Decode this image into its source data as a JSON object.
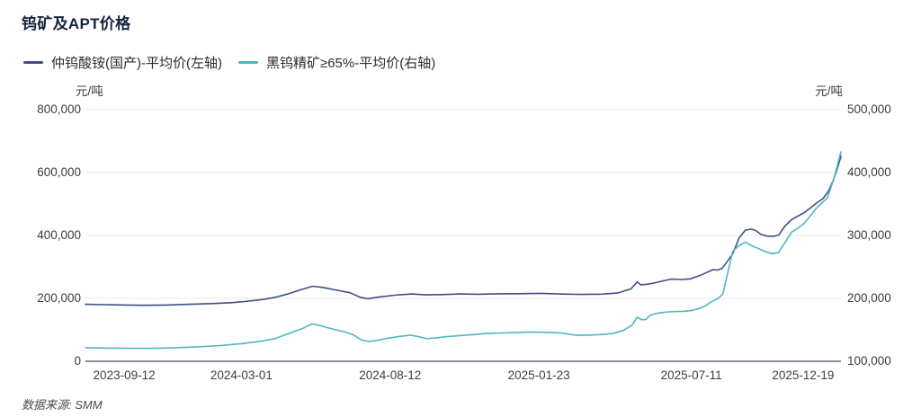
{
  "header": {
    "title": "钨矿及APT价格"
  },
  "footer": {
    "text": "数据来源: SMM"
  },
  "colors": {
    "title_text": "#15233d",
    "tick_text": "#3d3d3d",
    "grid": "#e8e8e8",
    "axis_line": "#8a9097",
    "series_apt": "#3f4e86",
    "series_concentrate": "#4fb6c6"
  },
  "chart_data": {
    "type": "line",
    "title": "钨矿及APT价格",
    "grid": true,
    "legend_position": "top-left",
    "left_axis": {
      "unit": "元/吨",
      "min": 0,
      "max": 800000,
      "ticks": [
        {
          "value": 800000,
          "label": "800,000"
        },
        {
          "value": 600000,
          "label": "600,000"
        },
        {
          "value": 400000,
          "label": "400,000"
        },
        {
          "value": 200000,
          "label": "200,000"
        },
        {
          "value": 0,
          "label": "0"
        }
      ]
    },
    "right_axis": {
      "unit": "元/吨",
      "min": 100000,
      "max": 500000,
      "ticks": [
        {
          "value": 500000,
          "label": "500,000"
        },
        {
          "value": 400000,
          "label": "400,000"
        },
        {
          "value": 300000,
          "label": "300,000"
        },
        {
          "value": 200000,
          "label": "200,000"
        },
        {
          "value": 100000,
          "label": "100,000"
        }
      ]
    },
    "x_axis": {
      "ticks": [
        {
          "label": "2023-09-12",
          "pos": 0.0513
        },
        {
          "label": "2024-03-01",
          "pos": 0.2064
        },
        {
          "label": "2024-08-12",
          "pos": 0.4033
        },
        {
          "label": "2025-01-23",
          "pos": 0.6002
        },
        {
          "label": "2025-07-11",
          "pos": 0.8019
        },
        {
          "label": "2025-12-19",
          "pos": 0.9499
        }
      ]
    },
    "series": [
      {
        "name": "仲钨酸铵(国产)-平均价(左轴)",
        "axis": "left",
        "color": "#3f4e86",
        "points": [
          [
            0.0,
            181000
          ],
          [
            0.024,
            180000
          ],
          [
            0.054,
            179000
          ],
          [
            0.078,
            178000
          ],
          [
            0.107,
            179000
          ],
          [
            0.137,
            181000
          ],
          [
            0.167,
            183500
          ],
          [
            0.191,
            186000
          ],
          [
            0.211,
            190000
          ],
          [
            0.233,
            196000
          ],
          [
            0.251,
            203000
          ],
          [
            0.269,
            215000
          ],
          [
            0.284,
            227000
          ],
          [
            0.301,
            238500
          ],
          [
            0.314,
            235000
          ],
          [
            0.331,
            227000
          ],
          [
            0.35,
            218000
          ],
          [
            0.364,
            203000
          ],
          [
            0.374,
            199000
          ],
          [
            0.388,
            204000
          ],
          [
            0.409,
            210000
          ],
          [
            0.432,
            214000
          ],
          [
            0.45,
            211000
          ],
          [
            0.471,
            212000
          ],
          [
            0.495,
            214000
          ],
          [
            0.519,
            213000
          ],
          [
            0.543,
            214500
          ],
          [
            0.573,
            215000
          ],
          [
            0.603,
            216000
          ],
          [
            0.627,
            214000
          ],
          [
            0.656,
            212500
          ],
          [
            0.684,
            213500
          ],
          [
            0.704,
            217000
          ],
          [
            0.722,
            230000
          ],
          [
            0.7303,
            252000
          ],
          [
            0.7351,
            243000
          ],
          [
            0.7435,
            245000
          ],
          [
            0.753,
            249000
          ],
          [
            0.765,
            256000
          ],
          [
            0.7757,
            261000
          ],
          [
            0.79,
            260000
          ],
          [
            0.8007,
            262000
          ],
          [
            0.8127,
            272000
          ],
          [
            0.8246,
            285000
          ],
          [
            0.8305,
            291000
          ],
          [
            0.8365,
            290000
          ],
          [
            0.8425,
            295000
          ],
          [
            0.8497,
            318000
          ],
          [
            0.8568,
            342000
          ],
          [
            0.8652,
            392000
          ],
          [
            0.8735,
            417000
          ],
          [
            0.8807,
            420000
          ],
          [
            0.8866,
            417000
          ],
          [
            0.8938,
            404000
          ],
          [
            0.9021,
            398000
          ],
          [
            0.9105,
            397000
          ],
          [
            0.9176,
            401000
          ],
          [
            0.926,
            430000
          ],
          [
            0.9344,
            450000
          ],
          [
            0.9427,
            461000
          ],
          [
            0.9511,
            472000
          ],
          [
            0.9594,
            487000
          ],
          [
            0.9678,
            503000
          ],
          [
            0.9761,
            517000
          ],
          [
            0.9833,
            540000
          ],
          [
            0.9893,
            572000
          ],
          [
            0.994,
            605000
          ],
          [
            0.9976,
            632000
          ],
          [
            1.0,
            652000
          ]
        ]
      },
      {
        "name": "黑钨精矿≥65%-平均价(右轴)",
        "axis": "right",
        "color": "#4fb6c6",
        "points": [
          [
            0.0,
            121500
          ],
          [
            0.03,
            121000
          ],
          [
            0.06,
            120500
          ],
          [
            0.09,
            120500
          ],
          [
            0.119,
            121500
          ],
          [
            0.149,
            123000
          ],
          [
            0.179,
            125000
          ],
          [
            0.206,
            128000
          ],
          [
            0.23,
            131500
          ],
          [
            0.251,
            136000
          ],
          [
            0.271,
            145000
          ],
          [
            0.288,
            152500
          ],
          [
            0.3,
            159500
          ],
          [
            0.31,
            157000
          ],
          [
            0.326,
            151500
          ],
          [
            0.341,
            147500
          ],
          [
            0.354,
            142500
          ],
          [
            0.365,
            134000
          ],
          [
            0.375,
            131500
          ],
          [
            0.385,
            133000
          ],
          [
            0.4,
            136500
          ],
          [
            0.415,
            139500
          ],
          [
            0.43,
            141500
          ],
          [
            0.44,
            139500
          ],
          [
            0.451,
            136000
          ],
          [
            0.463,
            137000
          ],
          [
            0.477,
            139000
          ],
          [
            0.493,
            140500
          ],
          [
            0.51,
            142000
          ],
          [
            0.529,
            144000
          ],
          [
            0.549,
            145000
          ],
          [
            0.569,
            145500
          ],
          [
            0.591,
            146500
          ],
          [
            0.611,
            146000
          ],
          [
            0.629,
            145000
          ],
          [
            0.648,
            141500
          ],
          [
            0.665,
            141500
          ],
          [
            0.681,
            142500
          ],
          [
            0.698,
            144000
          ],
          [
            0.712,
            149000
          ],
          [
            0.723,
            157000
          ],
          [
            0.7303,
            170000
          ],
          [
            0.7363,
            166000
          ],
          [
            0.7423,
            166500
          ],
          [
            0.747,
            173000
          ],
          [
            0.7554,
            176000
          ],
          [
            0.7661,
            178000
          ],
          [
            0.7781,
            179000
          ],
          [
            0.7912,
            179500
          ],
          [
            0.8019,
            180500
          ],
          [
            0.8127,
            184000
          ],
          [
            0.821,
            188500
          ],
          [
            0.8305,
            196000
          ],
          [
            0.8377,
            200000
          ],
          [
            0.8437,
            207000
          ],
          [
            0.8497,
            238000
          ],
          [
            0.8568,
            275000
          ],
          [
            0.8652,
            284000
          ],
          [
            0.8735,
            289500
          ],
          [
            0.8819,
            283500
          ],
          [
            0.8902,
            279500
          ],
          [
            0.8998,
            274500
          ],
          [
            0.9093,
            271000
          ],
          [
            0.9176,
            273000
          ],
          [
            0.926,
            289000
          ],
          [
            0.9344,
            305000
          ],
          [
            0.9427,
            311500
          ],
          [
            0.9511,
            319000
          ],
          [
            0.9594,
            331000
          ],
          [
            0.9678,
            344000
          ],
          [
            0.9761,
            353000
          ],
          [
            0.9821,
            360000
          ],
          [
            0.9881,
            381000
          ],
          [
            0.9928,
            400000
          ],
          [
            0.9964,
            417000
          ],
          [
            1.0,
            433000
          ]
        ]
      }
    ]
  }
}
